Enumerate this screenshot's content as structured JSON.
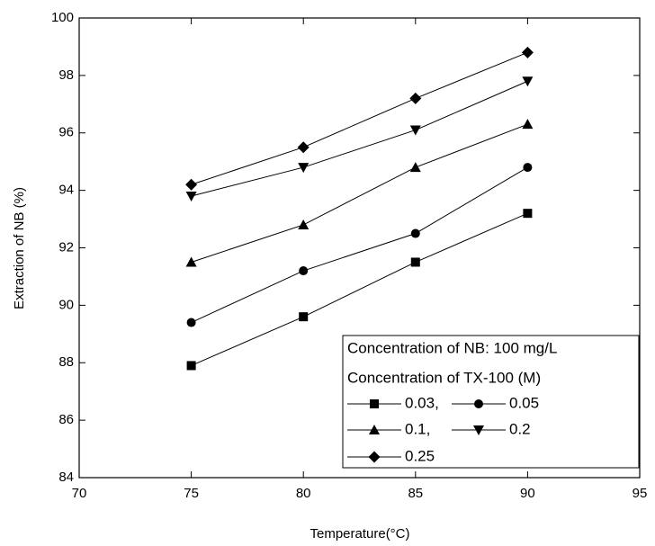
{
  "chart_data": {
    "type": "line",
    "x_label": "Temperature(°C)",
    "y_label": "Extraction of NB (%)",
    "x": [
      75,
      80,
      85,
      90
    ],
    "xlim": [
      70,
      95
    ],
    "xticks": [
      70,
      75,
      80,
      85,
      90,
      95
    ],
    "ylim": [
      84,
      100
    ],
    "yticks": [
      84,
      86,
      88,
      90,
      92,
      94,
      96,
      98,
      100
    ],
    "legend_title": [
      "Concentration of NB: 100 mg/L",
      "Concentration of TX-100 (M)"
    ],
    "legend_position": "lower right",
    "series": [
      {
        "name": "0.03,",
        "color": "#000000",
        "marker": "square",
        "values": [
          87.9,
          89.6,
          91.5,
          93.2
        ]
      },
      {
        "name": "0.05",
        "color": "#000000",
        "marker": "circle",
        "values": [
          89.4,
          91.2,
          92.5,
          94.8
        ]
      },
      {
        "name": "0.1,",
        "color": "#000000",
        "marker": "triangle-up",
        "values": [
          91.5,
          92.8,
          94.8,
          96.3
        ]
      },
      {
        "name": "0.2",
        "color": "#000000",
        "marker": "triangle-down",
        "values": [
          93.8,
          94.8,
          96.1,
          97.8
        ]
      },
      {
        "name": "0.25",
        "color": "#000000",
        "marker": "diamond",
        "values": [
          94.2,
          95.5,
          97.2,
          98.8
        ]
      }
    ]
  }
}
